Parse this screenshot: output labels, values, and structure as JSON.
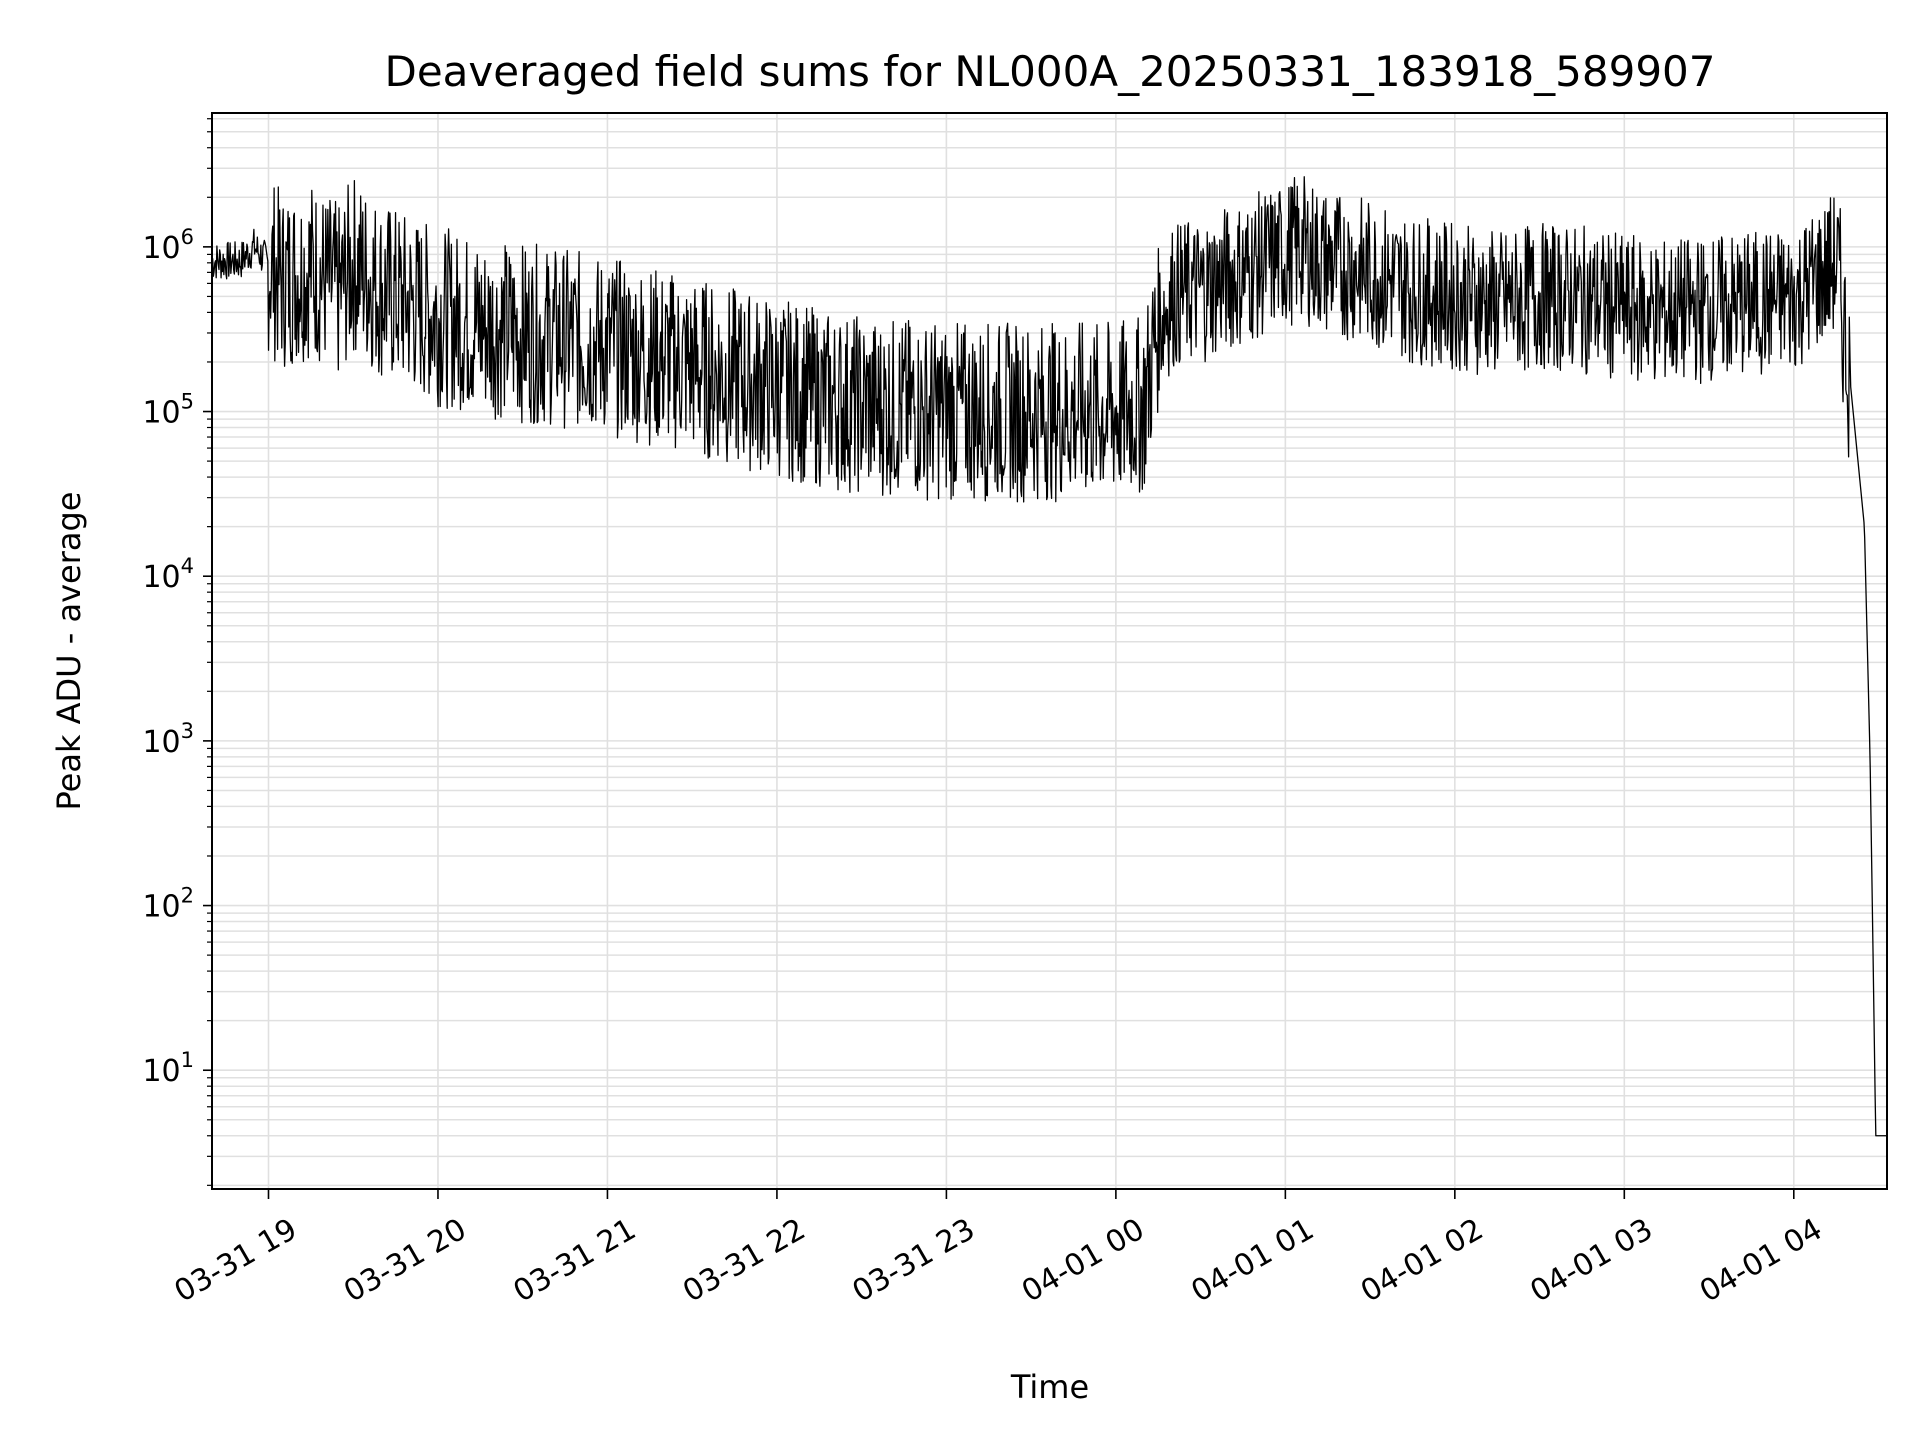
{
  "chart_data": {
    "type": "line",
    "title": "Deaveraged field sums for NL000A_20250331_183918_589907",
    "xlabel": "Time",
    "ylabel": "Peak ADU - average",
    "yscale": "log",
    "grid": true,
    "grid_minor": true,
    "line_color": "#000000",
    "grid_color": "#e0e0e0",
    "xlim": [
      "2025-03-31 18:40",
      "2025-04-01 04:33"
    ],
    "ylim": [
      1.9,
      6500000
    ],
    "x_ticks": [
      {
        "t": "2025-03-31 19:00",
        "label": "03-31 19"
      },
      {
        "t": "2025-03-31 20:00",
        "label": "03-31 20"
      },
      {
        "t": "2025-03-31 21:00",
        "label": "03-31 21"
      },
      {
        "t": "2025-03-31 22:00",
        "label": "03-31 22"
      },
      {
        "t": "2025-03-31 23:00",
        "label": "03-31 23"
      },
      {
        "t": "2025-04-01 00:00",
        "label": "04-01 00"
      },
      {
        "t": "2025-04-01 01:00",
        "label": "04-01 01"
      },
      {
        "t": "2025-04-01 02:00",
        "label": "04-01 02"
      },
      {
        "t": "2025-04-01 03:00",
        "label": "04-01 03"
      },
      {
        "t": "2025-04-01 04:00",
        "label": "04-01 04"
      }
    ],
    "y_ticks": [
      {
        "value": 10,
        "base": "10",
        "exp": "1"
      },
      {
        "value": 100,
        "base": "10",
        "exp": "2"
      },
      {
        "value": 1000,
        "base": "10",
        "exp": "3"
      },
      {
        "value": 10000,
        "base": "10",
        "exp": "4"
      },
      {
        "value": 100000,
        "base": "10",
        "exp": "5"
      },
      {
        "value": 1000000,
        "base": "10",
        "exp": "6"
      }
    ],
    "series": [
      {
        "x": [
          "2025-03-31 18:40",
          "2025-03-31 18:50",
          "2025-03-31 18:55",
          "2025-03-31 19:05",
          "2025-03-31 19:15",
          "2025-03-31 19:25",
          "2025-03-31 19:30",
          "2025-03-31 19:40",
          "2025-03-31 19:50",
          "2025-03-31 20:00",
          "2025-03-31 20:15",
          "2025-03-31 20:30",
          "2025-03-31 20:45",
          "2025-03-31 21:00",
          "2025-03-31 21:15",
          "2025-03-31 21:30",
          "2025-03-31 21:45",
          "2025-03-31 22:00",
          "2025-03-31 22:15",
          "2025-03-31 22:30",
          "2025-03-31 22:45",
          "2025-03-31 23:00",
          "2025-03-31 23:15",
          "2025-03-31 23:30",
          "2025-03-31 23:45",
          "2025-04-01 00:00",
          "2025-04-01 00:10",
          "2025-04-01 00:15",
          "2025-04-01 00:20",
          "2025-04-01 00:30",
          "2025-04-01 00:45",
          "2025-04-01 01:00",
          "2025-04-01 01:05",
          "2025-04-01 01:15",
          "2025-04-01 01:30",
          "2025-04-01 01:45",
          "2025-04-01 02:00",
          "2025-04-01 02:15",
          "2025-04-01 02:30",
          "2025-04-01 02:45",
          "2025-04-01 03:00",
          "2025-04-01 03:15",
          "2025-04-01 03:30",
          "2025-04-01 03:45",
          "2025-04-01 04:00",
          "2025-04-01 04:15",
          "2025-04-01 04:20",
          "2025-04-01 04:25",
          "2025-04-01 04:27",
          "2025-04-01 04:28",
          "2025-04-01 04:29",
          "2025-04-01 04:30",
          "2025-04-01 04:33"
        ],
        "values": [
          820000,
          820000,
          1000000,
          620000,
          750000,
          520000,
          800000,
          550000,
          450000,
          380000,
          330000,
          300000,
          280000,
          250000,
          220000,
          190000,
          160000,
          140000,
          120000,
          110000,
          105000,
          100000,
          100000,
          100000,
          100000,
          100000,
          110000,
          350000,
          500000,
          550000,
          700000,
          900000,
          1000000,
          800000,
          700000,
          550000,
          500000,
          450000,
          500000,
          480000,
          420000,
          400000,
          420000,
          450000,
          480000,
          800000,
          150000,
          20000,
          800,
          60,
          4,
          4,
          4
        ]
      }
    ]
  }
}
